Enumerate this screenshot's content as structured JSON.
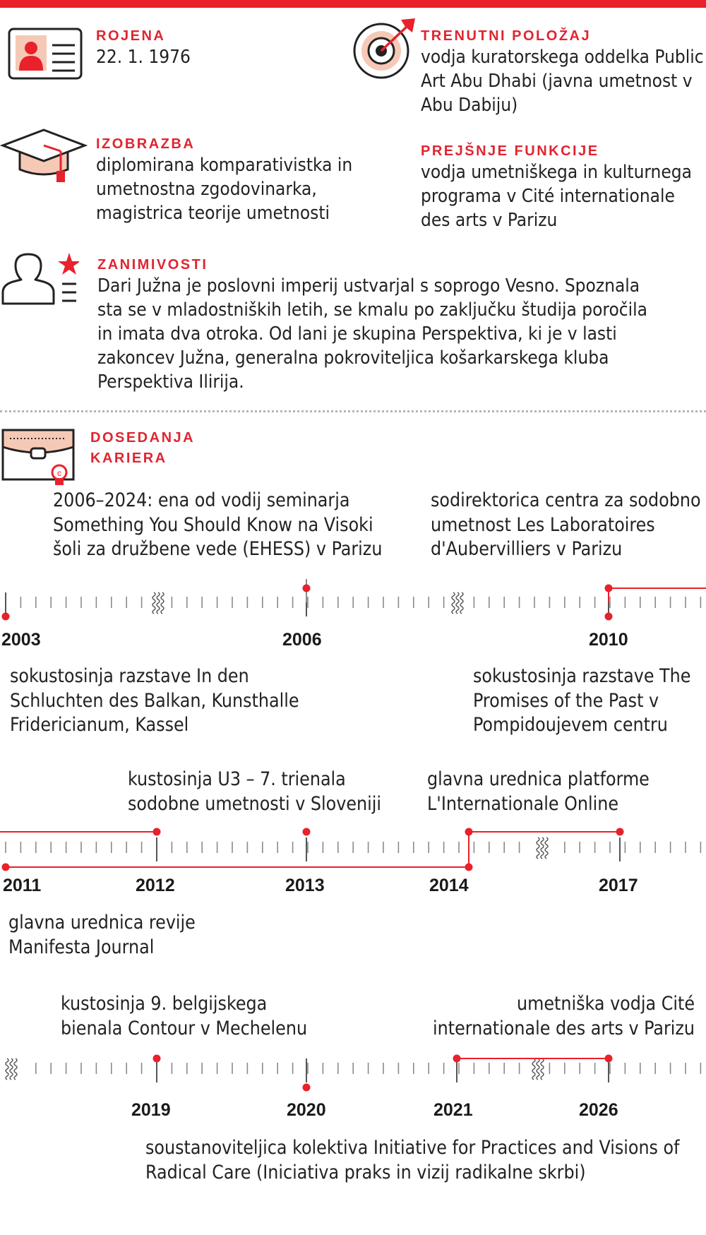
{
  "colors": {
    "accent": "#e8212b",
    "text": "#222222",
    "tick": "#8a8a8a",
    "separator": "#b5b5b5"
  },
  "profile": {
    "born": {
      "label": "ROJENA",
      "value": "22. 1. 1976",
      "icon": "id-card-icon"
    },
    "current_position": {
      "label": "TRENUTNI POLOŽAJ",
      "lines": [
        "vodja kuratorskega oddelka Public",
        "Art Abu Dhabi (javna umetnost v",
        "Abu Dabiju)"
      ],
      "icon": "target-icon"
    },
    "education": {
      "label": "IZOBRAZBA",
      "lines": [
        "diplomirana komparativistka in",
        "umetnostna zgodovinarka,",
        "magistrica teorije umetnosti"
      ],
      "icon": "graduation-cap-icon"
    },
    "previous_roles": {
      "label": "PREJŠNJE FUNKCIJE",
      "lines": [
        "vodja umetniškega in kulturnega",
        "programa v Cité internationale",
        "des arts v Parizu"
      ]
    },
    "trivia": {
      "label": "ZANIMIVOSTI",
      "lines": [
        "Dari Južna je poslovni imperij ustvarjal s soprogo Vesno. Spoznala",
        "sta se v mladostniških letih, se kmalu po zaključku študija poročila",
        "in imata dva otroka. Od lani je skupina Perspektiva, ki je v lasti",
        "zakoncev Južna, generalna pokroviteljica košarkarskega kluba",
        "Perspektiva Ilirija."
      ],
      "icon": "person-star-icon"
    }
  },
  "career": {
    "label_lines": [
      "DOSEDANJA",
      "KARIERA"
    ],
    "icon": "diploma-envelope-icon",
    "rows": [
      {
        "years": [
          "2003",
          "2006",
          "2010"
        ],
        "above": [
          {
            "lines": [
              "2006–2024: ena od vodij seminarja",
              "Something You Should Know na Visoki",
              "šoli za družbene vede (EHESS) v Parizu"
            ]
          },
          {
            "lines": [
              "sodirektorica centra za sodobno",
              "umetnost Les Laboratoires",
              "d'Aubervilliers v Parizu"
            ]
          }
        ],
        "below": [
          {
            "lines": [
              "sokustosinja razstave In den",
              "Schluchten des Balkan, Kunsthalle",
              "Fridericianum, Kassel"
            ]
          },
          {
            "lines": [
              "sokustosinja razstave The",
              "Promises of the Past v",
              "Pompidoujevem centru"
            ]
          }
        ]
      },
      {
        "years": [
          "2011",
          "2012",
          "2013",
          "2014",
          "2017"
        ],
        "above": [
          {
            "lines": [
              "kustosinja U3 – 7. trienala",
              "sodobne umetnosti v Sloveniji"
            ]
          },
          {
            "lines": [
              "glavna urednica platforme",
              "L'Internationale Online"
            ]
          }
        ],
        "below": [
          {
            "lines": [
              "glavna urednica revije",
              "Manifesta Journal"
            ]
          }
        ]
      },
      {
        "years": [
          "2019",
          "2020",
          "2021",
          "2026"
        ],
        "above": [
          {
            "lines": [
              "kustosinja 9. belgijskega",
              "bienala Contour v Mechelenu"
            ]
          },
          {
            "lines": [
              "umetniška vodja Cité",
              "internationale des arts v Parizu"
            ]
          }
        ],
        "below": [
          {
            "lines": [
              "soustanoviteljica kolektiva Initiative for Practices and Visions of",
              "Radical Care (Iniciativa praks in vizij radikalne skrbi)"
            ]
          }
        ]
      }
    ]
  }
}
